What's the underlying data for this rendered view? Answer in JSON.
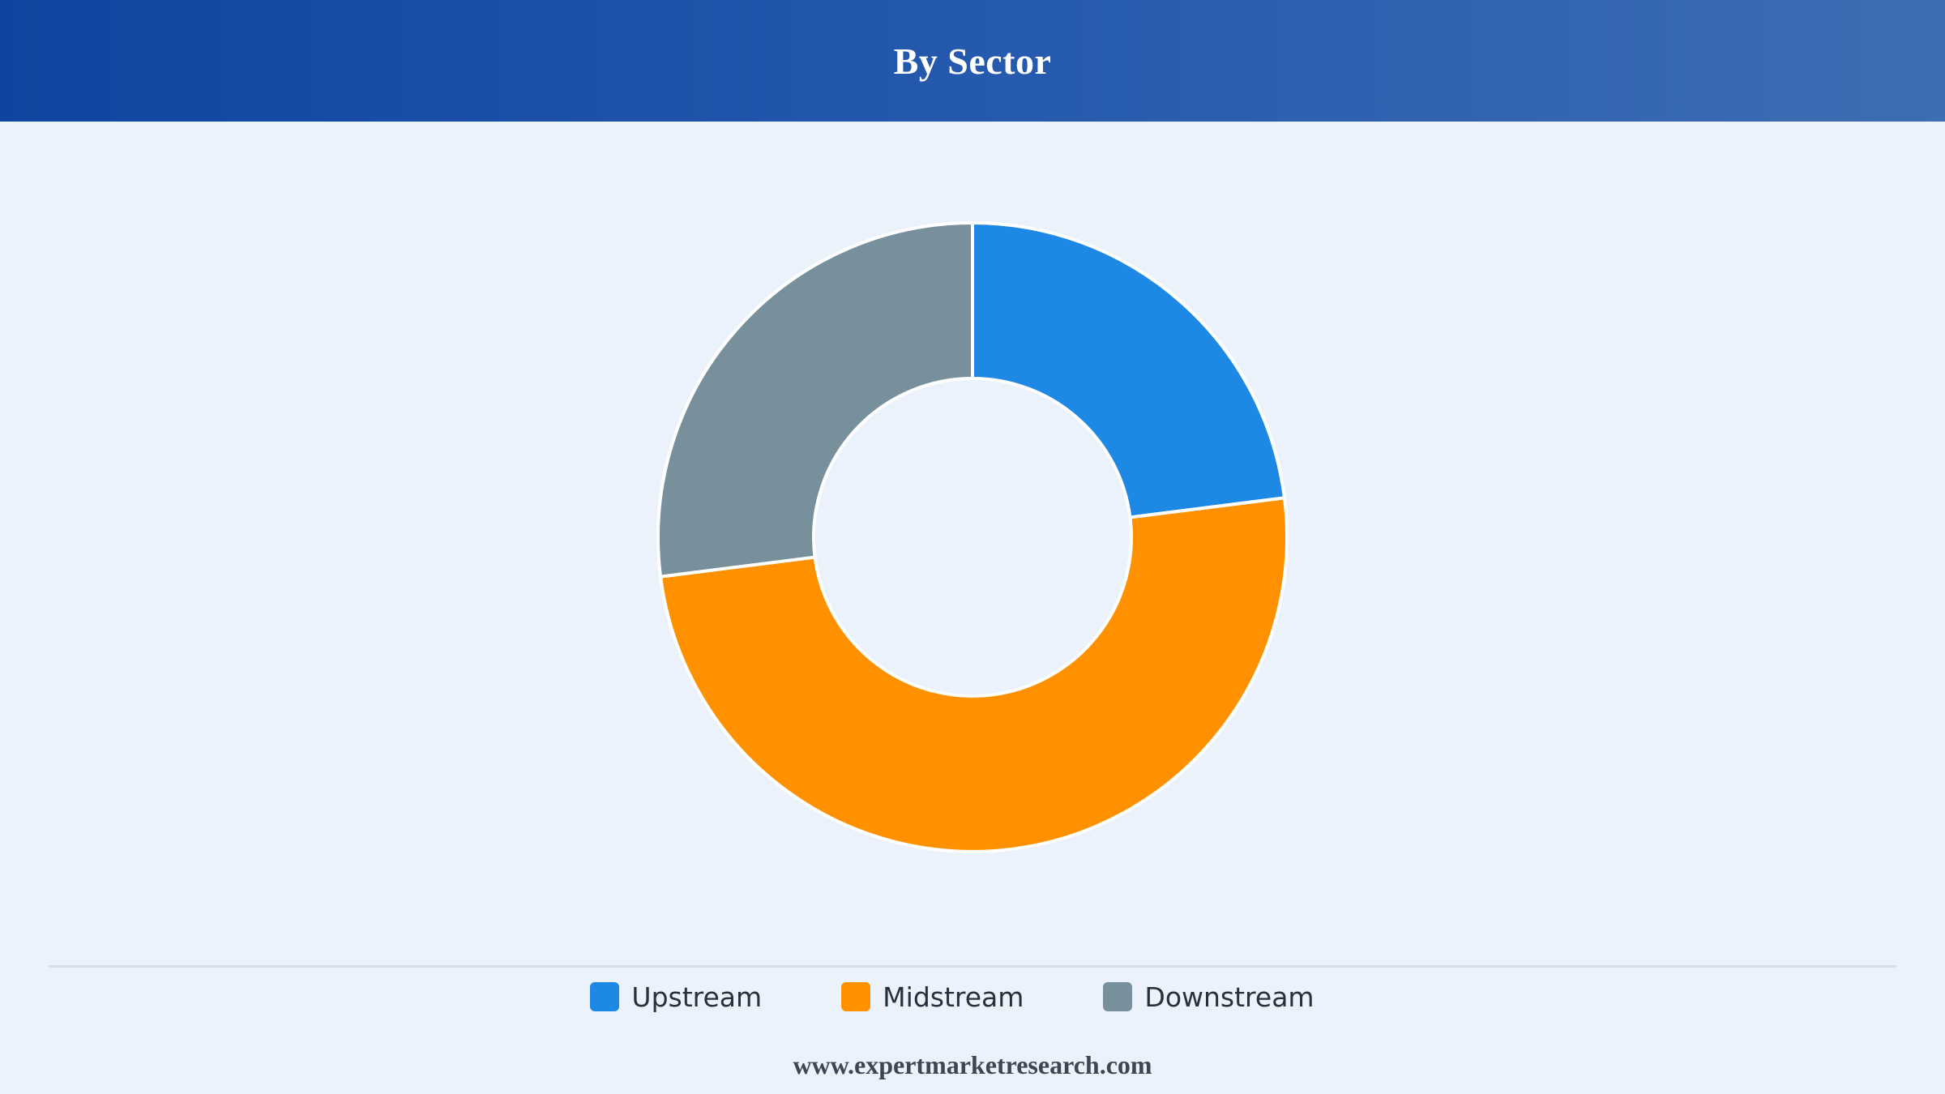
{
  "header": {
    "title": "By Sector"
  },
  "chart_data": {
    "type": "pie",
    "donut": true,
    "title": "By Sector",
    "categories": [
      "Upstream",
      "Midstream",
      "Downstream"
    ],
    "values": [
      23,
      50,
      27
    ],
    "colors": [
      "#1e88e5",
      "#ff9100",
      "#78909c"
    ],
    "legend_position": "bottom",
    "grid": false
  },
  "legend": {
    "items": [
      {
        "label": "Upstream",
        "color": "#1e88e5"
      },
      {
        "label": "Midstream",
        "color": "#ff9100"
      },
      {
        "label": "Downstream",
        "color": "#78909c"
      }
    ]
  },
  "footer": {
    "source": "www.expertmarketresearch.com"
  },
  "colors": {
    "background": "#ebf2fb",
    "header_start": "#0d45a0",
    "header_end": "#3e6db3"
  }
}
